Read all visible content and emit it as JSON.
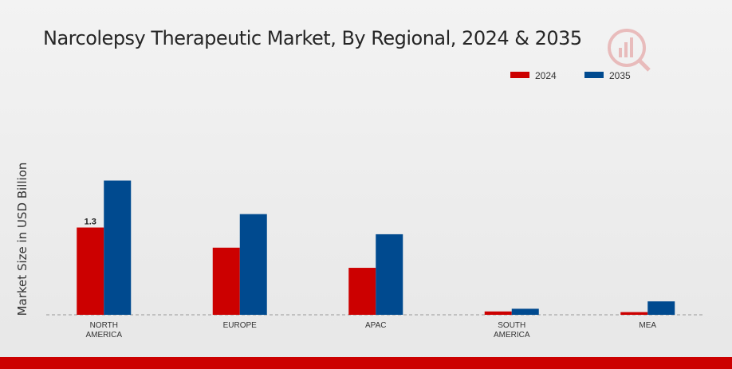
{
  "chart_data": {
    "type": "bar",
    "title": "Narcolepsy Therapeutic Market, By Regional, 2024 & 2035",
    "xlabel": "",
    "ylabel": "Market Size in USD Billion",
    "categories": [
      "NORTH\nAMERICA",
      "EUROPE",
      "APAC",
      "SOUTH\nAMERICA",
      "MEA"
    ],
    "series": [
      {
        "name": "2024",
        "values": [
          1.3,
          1.0,
          0.7,
          0.05,
          0.04
        ],
        "color": "#cc0000"
      },
      {
        "name": "2035",
        "values": [
          2.0,
          1.5,
          1.2,
          0.09,
          0.2
        ],
        "color": "#004a8f"
      }
    ],
    "data_labels": [
      {
        "series": 0,
        "index": 0,
        "text": "1.3"
      }
    ],
    "ylim": [
      0,
      2.6
    ],
    "grid": false,
    "legend": "top-right"
  }
}
